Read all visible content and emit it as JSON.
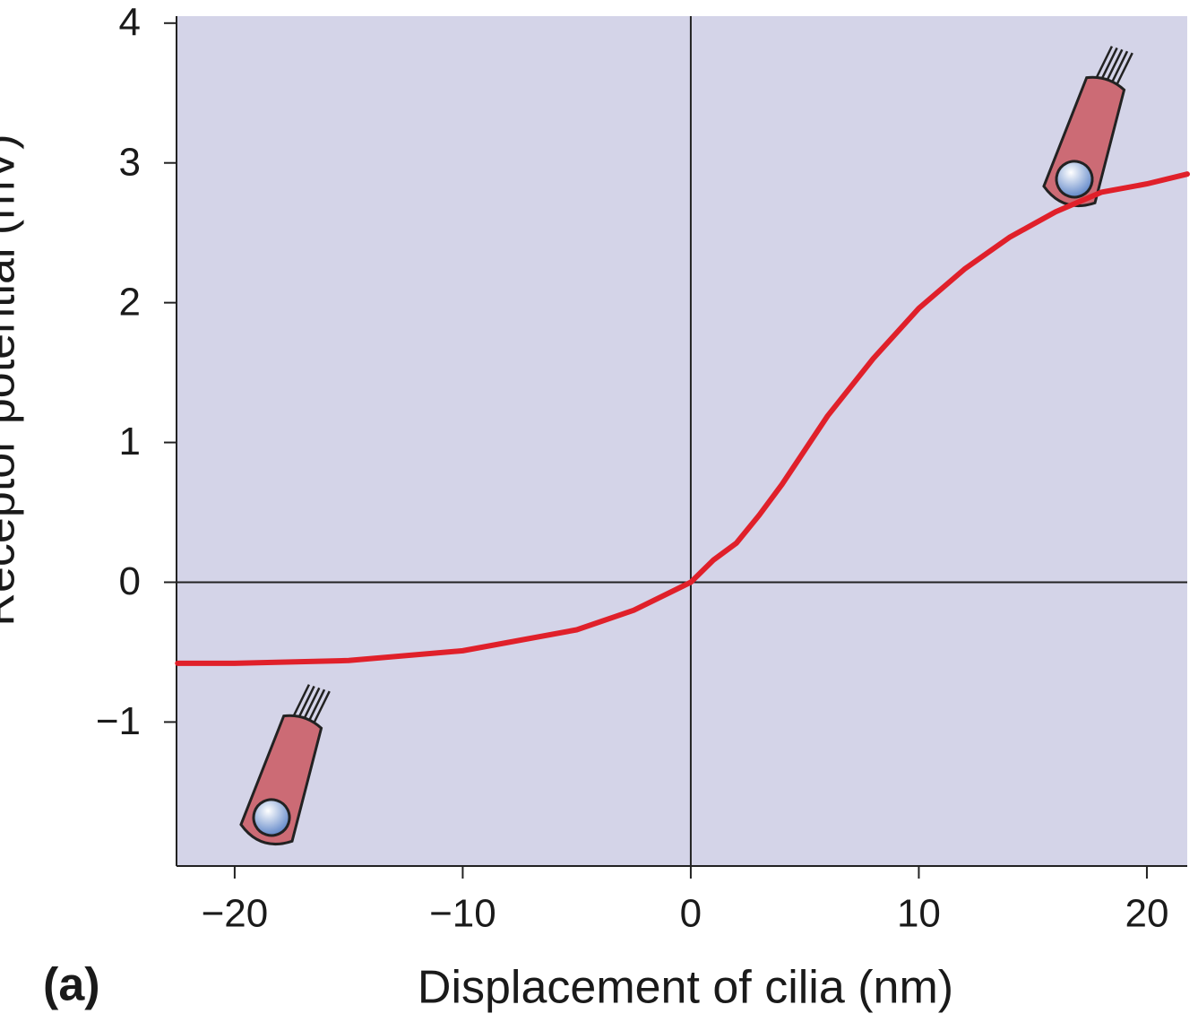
{
  "chart_data": {
    "type": "line",
    "panel_label": "(a)",
    "x_label": "Displacement of cilia (nm)",
    "y_label": "Receptor potential (mV)",
    "xlim": [
      -22.55,
      21.77
    ],
    "ylim": [
      -2.03,
      4.05
    ],
    "xticks": [
      {
        "value": -20,
        "label": "−20"
      },
      {
        "value": -10,
        "label": "−10"
      },
      0,
      10,
      20
    ],
    "yticks": [
      {
        "value": -1,
        "label": "−1"
      },
      0,
      1,
      2,
      3,
      4
    ],
    "background": "#d4d4e8",
    "x": [
      -22.5,
      -20,
      -15,
      -10,
      -5,
      -2.5,
      0,
      1,
      2,
      3,
      4,
      6,
      8,
      10,
      12,
      14,
      16,
      18,
      20,
      21.77
    ],
    "series": [
      {
        "color": "#e0202a",
        "values": [
          -0.58,
          -0.58,
          -0.56,
          -0.49,
          -0.34,
          -0.2,
          0,
          0.16,
          0.28,
          0.48,
          0.7,
          1.19,
          1.6,
          1.96,
          2.24,
          2.47,
          2.65,
          2.79,
          2.85,
          2.92
        ]
      }
    ]
  }
}
